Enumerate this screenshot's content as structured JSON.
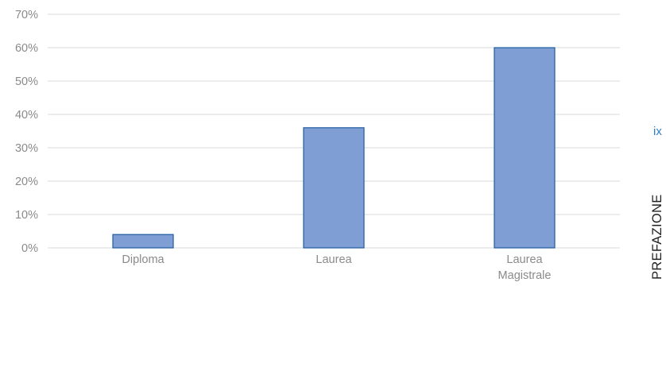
{
  "chart_data": {
    "type": "bar",
    "categories": [
      "Diploma",
      "Laurea",
      "Laurea Magistrale"
    ],
    "values": [
      4,
      36,
      60
    ],
    "ylim": [
      0,
      70
    ],
    "yticks": [
      0,
      10,
      20,
      30,
      40,
      50,
      60,
      70
    ],
    "ytick_labels": [
      "0%",
      "10%",
      "20%",
      "30%",
      "40%",
      "50%",
      "60%",
      "70%"
    ],
    "unit": "%",
    "grid": true,
    "legend": "none",
    "colors": {
      "bar_fill": "#7f9fd4",
      "bar_stroke": "#1f5aa0",
      "grid": "#d9d9d9",
      "text": "#8a8a8a"
    }
  },
  "sidebar": {
    "page_number": "ix",
    "section_title": "PREFAZIONE"
  }
}
